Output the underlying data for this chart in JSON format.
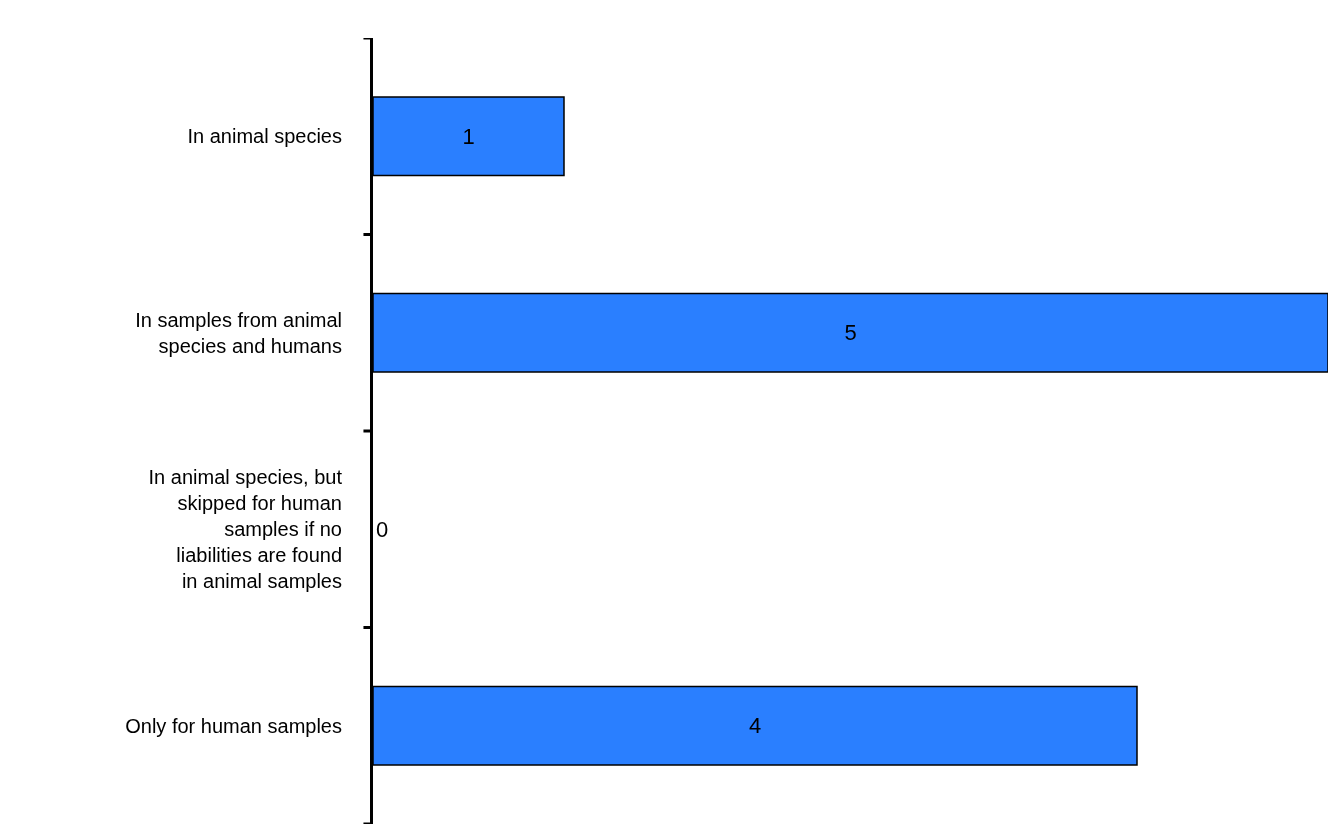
{
  "chart_data": {
    "type": "bar",
    "orientation": "horizontal",
    "tick_labels": "y",
    "categories": [
      "In animal species",
      "In samples from animal species and humans",
      "In animal species, but skipped for human samples if no liabilities are found in animal samples",
      "Only for human samples"
    ],
    "values": [
      1,
      5,
      0,
      4
    ],
    "color": "#2a7fff",
    "data_labels": true,
    "xlim": [
      0,
      5
    ],
    "legend": false
  }
}
